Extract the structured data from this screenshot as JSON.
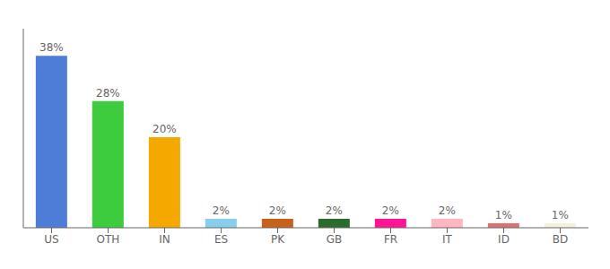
{
  "chart_data": {
    "type": "bar",
    "categories": [
      "US",
      "OTH",
      "IN",
      "ES",
      "PK",
      "GB",
      "FR",
      "IT",
      "ID",
      "BD"
    ],
    "values": [
      38,
      28,
      20,
      2,
      2,
      2,
      2,
      2,
      1,
      1
    ],
    "value_labels": [
      "38%",
      "28%",
      "20%",
      "2%",
      "2%",
      "2%",
      "2%",
      "2%",
      "1%",
      "1%"
    ],
    "colors": [
      "#4d7dd6",
      "#3dcc3d",
      "#f5a800",
      "#87ceeb",
      "#c8621a",
      "#2d6a2d",
      "#ff1493",
      "#ffb6c1",
      "#e07070",
      "#f5f0dc"
    ],
    "ylim": [
      0,
      44
    ],
    "data_labels": true,
    "tick_labels": "x"
  }
}
